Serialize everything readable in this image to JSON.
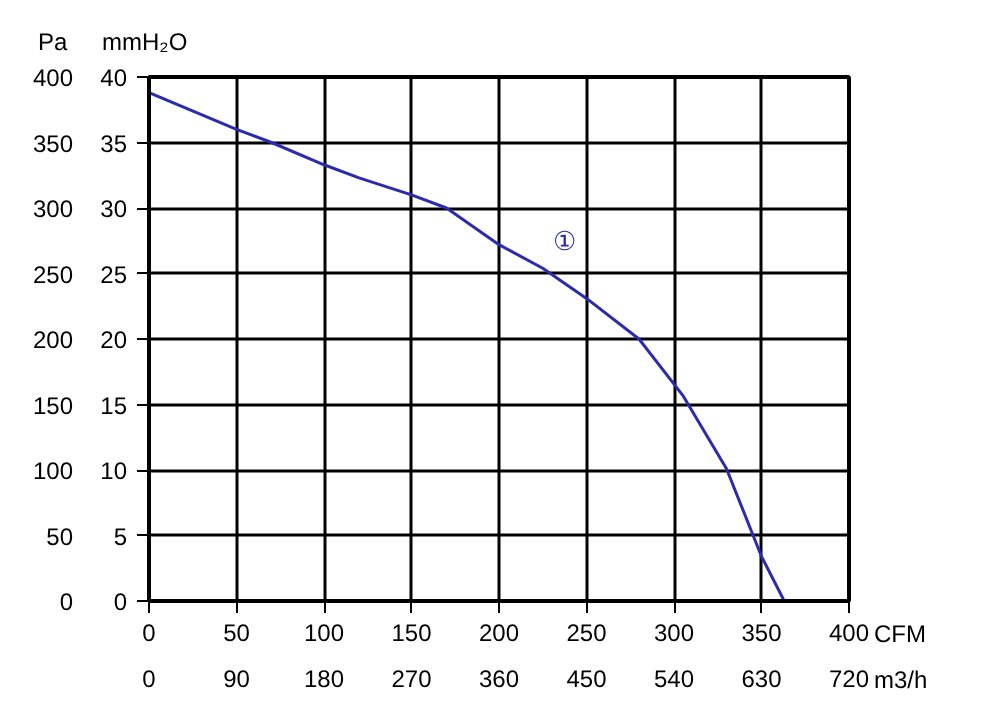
{
  "chart_data": {
    "type": "line",
    "xlabel": "CFM",
    "x2label": "m3/h",
    "ylabel": "Pa",
    "y2label": "mmH₂O",
    "x": [
      0,
      50,
      70,
      100,
      120,
      150,
      170,
      200,
      225,
      250,
      280,
      305,
      330,
      350,
      363
    ],
    "series": [
      {
        "color": "#2b2bb0",
        "values": [
          388,
          360,
          350,
          333,
          323,
          310,
          300,
          272,
          254,
          231,
          200,
          157,
          101,
          34,
          0
        ]
      }
    ],
    "xlim": [
      0,
      400
    ],
    "xticks": [
      0,
      50,
      100,
      150,
      200,
      250,
      300,
      350,
      400
    ],
    "x2lim": [
      0,
      720
    ],
    "x2ticks": [
      0,
      90,
      180,
      270,
      360,
      450,
      540,
      630,
      720
    ],
    "ylim": [
      0,
      400
    ],
    "yticks": [
      0,
      50,
      100,
      150,
      200,
      250,
      300,
      350,
      400
    ],
    "y2lim": [
      0,
      40
    ],
    "y2ticks": [
      0,
      5,
      10,
      15,
      20,
      25,
      30,
      35,
      40
    ],
    "annotations": [
      "①"
    ],
    "grid": true,
    "marker": "none",
    "line_style": "solid"
  }
}
